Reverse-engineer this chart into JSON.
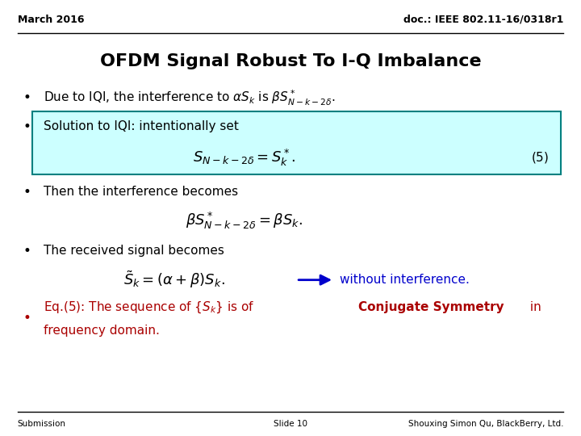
{
  "header_left": "March 2016",
  "header_right": "doc.: IEEE 802.11-16/0318r1",
  "title": "OFDM Signal Robust To I-Q Imbalance",
  "footer_left": "Submission",
  "footer_center": "Slide 10",
  "footer_right": "Shouxing Simon Qu, BlackBerry, Ltd.",
  "background_color": "#ffffff",
  "box_bg_color": "#ccffff",
  "box_edge_color": "#008080",
  "red_color": "#aa0000",
  "blue_color": "#0000cc"
}
